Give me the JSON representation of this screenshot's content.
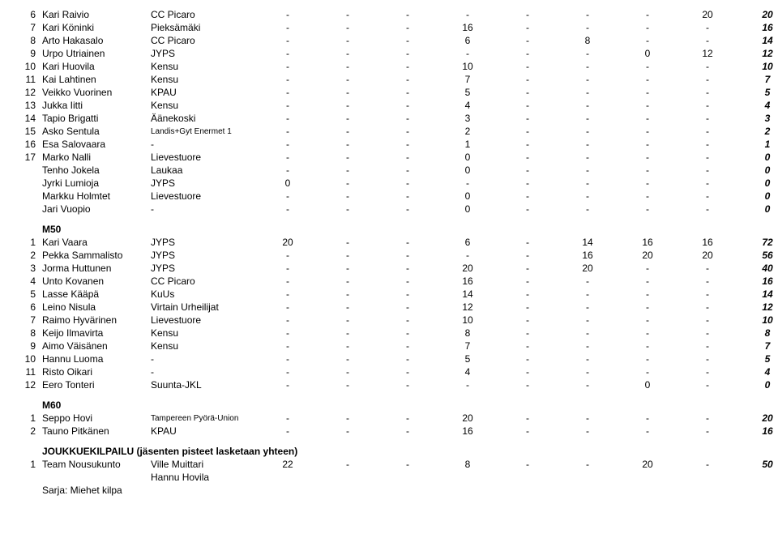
{
  "rows1": [
    {
      "n": "6",
      "name": "Kari Raivio",
      "club": "CC Picaro",
      "v": [
        "-",
        "-",
        "-",
        "-",
        "-",
        "-",
        "-",
        "20"
      ],
      "t": "20",
      "small": false
    },
    {
      "n": "7",
      "name": "Kari Köninki",
      "club": "Pieksämäki",
      "v": [
        "-",
        "-",
        "-",
        "16",
        "-",
        "-",
        "-",
        "-"
      ],
      "t": "16",
      "small": false
    },
    {
      "n": "8",
      "name": "Arto Hakasalo",
      "club": "CC Picaro",
      "v": [
        "-",
        "-",
        "-",
        "6",
        "-",
        "8",
        "-",
        "-"
      ],
      "t": "14",
      "small": false
    },
    {
      "n": "9",
      "name": "Urpo Utriainen",
      "club": "JYPS",
      "v": [
        "-",
        "-",
        "-",
        "-",
        "-",
        "-",
        "0",
        "12"
      ],
      "t": "12",
      "small": false
    },
    {
      "n": "10",
      "name": "Kari Huovila",
      "club": "Kensu",
      "v": [
        "-",
        "-",
        "-",
        "10",
        "-",
        "-",
        "-",
        "-"
      ],
      "t": "10",
      "small": false
    },
    {
      "n": "11",
      "name": "Kai Lahtinen",
      "club": "Kensu",
      "v": [
        "-",
        "-",
        "-",
        "7",
        "-",
        "-",
        "-",
        "-"
      ],
      "t": "7",
      "small": false
    },
    {
      "n": "12",
      "name": "Veikko Vuorinen",
      "club": "KPAU",
      "v": [
        "-",
        "-",
        "-",
        "5",
        "-",
        "-",
        "-",
        "-"
      ],
      "t": "5",
      "small": false
    },
    {
      "n": "13",
      "name": "Jukka Iitti",
      "club": "Kensu",
      "v": [
        "-",
        "-",
        "-",
        "4",
        "-",
        "-",
        "-",
        "-"
      ],
      "t": "4",
      "small": false
    },
    {
      "n": "14",
      "name": "Tapio Brigatti",
      "club": "Äänekoski",
      "v": [
        "-",
        "-",
        "-",
        "3",
        "-",
        "-",
        "-",
        "-"
      ],
      "t": "3",
      "small": false
    },
    {
      "n": "15",
      "name": "Asko Sentula",
      "club": "Landis+Gyt Enermet 1",
      "v": [
        "-",
        "-",
        "-",
        "2",
        "-",
        "-",
        "-",
        "-"
      ],
      "t": "2",
      "small": true
    },
    {
      "n": "16",
      "name": "Esa Salovaara",
      "club": "-",
      "v": [
        "-",
        "-",
        "-",
        "1",
        "-",
        "-",
        "-",
        "-"
      ],
      "t": "1",
      "small": false
    },
    {
      "n": "17",
      "name": "Marko Nalli",
      "club": "Lievestuore",
      "v": [
        "-",
        "-",
        "-",
        "0",
        "-",
        "-",
        "-",
        "-"
      ],
      "t": "0",
      "small": false
    },
    {
      "n": "",
      "name": "Tenho Jokela",
      "club": "Laukaa",
      "v": [
        "-",
        "-",
        "-",
        "0",
        "-",
        "-",
        "-",
        "-"
      ],
      "t": "0",
      "small": false
    },
    {
      "n": "",
      "name": "Jyrki Lumioja",
      "club": "JYPS",
      "v": [
        "0",
        "-",
        "-",
        "-",
        "-",
        "-",
        "-",
        "-"
      ],
      "t": "0",
      "small": false
    },
    {
      "n": "",
      "name": "Markku Holmtet",
      "club": "Lievestuore",
      "v": [
        "-",
        "-",
        "-",
        "0",
        "-",
        "-",
        "-",
        "-"
      ],
      "t": "0",
      "small": false
    },
    {
      "n": "",
      "name": "Jari Vuopio",
      "club": "-",
      "v": [
        "-",
        "-",
        "-",
        "0",
        "-",
        "-",
        "-",
        "-"
      ],
      "t": "0",
      "small": false
    }
  ],
  "m50_label": "M50",
  "rows2": [
    {
      "n": "1",
      "name": "Kari Vaara",
      "club": "JYPS",
      "v": [
        "20",
        "-",
        "-",
        "6",
        "-",
        "14",
        "16",
        "16"
      ],
      "t": "72",
      "small": false
    },
    {
      "n": "2",
      "name": "Pekka Sammalisto",
      "club": "JYPS",
      "v": [
        "-",
        "-",
        "-",
        "-",
        "-",
        "16",
        "20",
        "20"
      ],
      "t": "56",
      "small": false
    },
    {
      "n": "3",
      "name": "Jorma Huttunen",
      "club": "JYPS",
      "v": [
        "-",
        "-",
        "-",
        "20",
        "-",
        "20",
        "-",
        "-"
      ],
      "t": "40",
      "small": false
    },
    {
      "n": "4",
      "name": "Unto Kovanen",
      "club": "CC Picaro",
      "v": [
        "-",
        "-",
        "-",
        "16",
        "-",
        "-",
        "-",
        "-"
      ],
      "t": "16",
      "small": false
    },
    {
      "n": "5",
      "name": "Lasse Kääpä",
      "club": "KuUs",
      "v": [
        "-",
        "-",
        "-",
        "14",
        "-",
        "-",
        "-",
        "-"
      ],
      "t": "14",
      "small": false
    },
    {
      "n": "6",
      "name": "Leino Nisula",
      "club": "Virtain Urheilijat",
      "v": [
        "-",
        "-",
        "-",
        "12",
        "-",
        "-",
        "-",
        "-"
      ],
      "t": "12",
      "small": false
    },
    {
      "n": "7",
      "name": "Raimo Hyvärinen",
      "club": "Lievestuore",
      "v": [
        "-",
        "-",
        "-",
        "10",
        "-",
        "-",
        "-",
        "-"
      ],
      "t": "10",
      "small": false
    },
    {
      "n": "8",
      "name": "Keijo Ilmavirta",
      "club": "Kensu",
      "v": [
        "-",
        "-",
        "-",
        "8",
        "-",
        "-",
        "-",
        "-"
      ],
      "t": "8",
      "small": false
    },
    {
      "n": "9",
      "name": "Aimo Väisänen",
      "club": "Kensu",
      "v": [
        "-",
        "-",
        "-",
        "7",
        "-",
        "-",
        "-",
        "-"
      ],
      "t": "7",
      "small": false
    },
    {
      "n": "10",
      "name": "Hannu Luoma",
      "club": "-",
      "v": [
        "-",
        "-",
        "-",
        "5",
        "-",
        "-",
        "-",
        "-"
      ],
      "t": "5",
      "small": false
    },
    {
      "n": "11",
      "name": "Risto Oikari",
      "club": "-",
      "v": [
        "-",
        "-",
        "-",
        "4",
        "-",
        "-",
        "-",
        "-"
      ],
      "t": "4",
      "small": false
    },
    {
      "n": "12",
      "name": "Eero Tonteri",
      "club": "Suunta-JKL",
      "v": [
        "-",
        "-",
        "-",
        "-",
        "-",
        "-",
        "0",
        "-"
      ],
      "t": "0",
      "small": false
    }
  ],
  "m60_label": "M60",
  "rows3": [
    {
      "n": "1",
      "name": "Seppo Hovi",
      "club": "Tampereen Pyörä-Union",
      "v": [
        "-",
        "-",
        "-",
        "20",
        "-",
        "-",
        "-",
        "-"
      ],
      "t": "20",
      "small": true
    },
    {
      "n": "2",
      "name": "Tauno Pitkänen",
      "club": "KPAU",
      "v": [
        "-",
        "-",
        "-",
        "16",
        "-",
        "-",
        "-",
        "-"
      ],
      "t": "16",
      "small": false
    }
  ],
  "team_label": "JOUKKUEKILPAILU (jäsenten pisteet lasketaan yhteen)",
  "team_row": {
    "n": "1",
    "name": "Team Nousukunto",
    "club": "Ville Muittari",
    "v": [
      "22",
      "-",
      "-",
      "8",
      "-",
      "-",
      "20",
      "-"
    ],
    "t": "50"
  },
  "team_row2_club": "Hannu Hovila",
  "sarja_label": "Sarja: Miehet kilpa"
}
